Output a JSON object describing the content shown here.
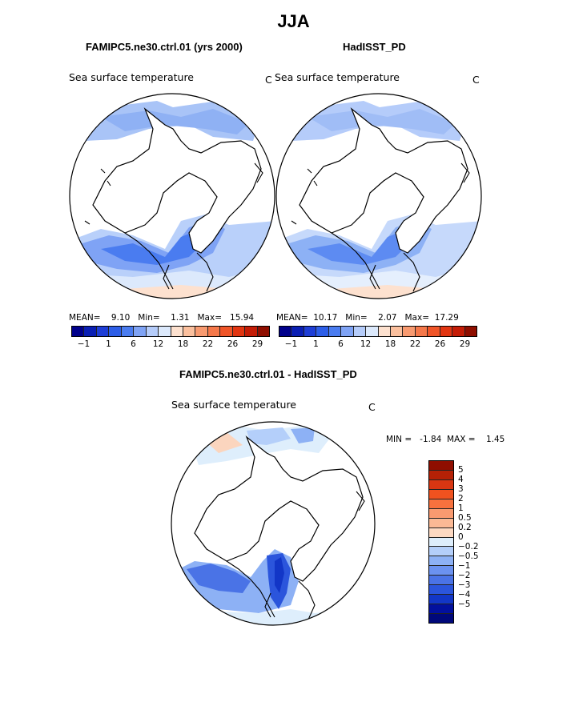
{
  "figure": {
    "title": "JJA",
    "panels": [
      {
        "case": "FAMIPC5.ne30.ctrl.01 (yrs 2000)",
        "variable": "Sea surface temperature",
        "unit": "C",
        "stats": {
          "mean_label": "MEAN=",
          "mean": "9.10",
          "min_label": "Min=",
          "min": "1.31",
          "max_label": "Max=",
          "max": "15.94"
        }
      },
      {
        "case": "HadISST_PD",
        "variable": "Sea surface temperature",
        "unit": "C",
        "stats": {
          "mean_label": "MEAN=",
          "mean": "10.17",
          "min_label": "Min=",
          "min": "2.07",
          "max_label": "Max=",
          "max": "17.29"
        }
      }
    ],
    "diff_panel": {
      "case": "FAMIPC5.ne30.ctrl.01 - HadISST_PD",
      "variable": "Sea surface temperature",
      "unit": "C",
      "stats": {
        "min_label": "MIN =",
        "min": "-1.84",
        "max_label": "MAX =",
        "max": "1.45"
      }
    }
  },
  "abs_colorbar": {
    "colors": [
      "#00008b",
      "#0a1fb4",
      "#1e3ed6",
      "#2d5ee8",
      "#4a7cf0",
      "#7fa3f5",
      "#b5ccfa",
      "#dce9fc",
      "#fde1cf",
      "#fbc09e",
      "#f89a70",
      "#f5784a",
      "#f05528",
      "#e23511",
      "#c41c06",
      "#8f0e00"
    ],
    "tick_labels": [
      "−1",
      "1",
      "6",
      "12",
      "18",
      "22",
      "26",
      "29"
    ]
  },
  "diff_colorbar": {
    "colors": [
      "#8f0e00",
      "#b52106",
      "#d93612",
      "#f0521f",
      "#f7713e",
      "#f99a70",
      "#fbb995",
      "#fdd9c2",
      "#deeefc",
      "#b4cffa",
      "#8db1f5",
      "#6b92f0",
      "#4a73e6",
      "#2b55dc",
      "#1236c7",
      "#02109e",
      "#00087a"
    ],
    "tick_labels": [
      "5",
      "4",
      "3",
      "2",
      "1",
      "0.5",
      "0.2",
      "0",
      "−0.2",
      "−0.5",
      "−1",
      "−2",
      "−3",
      "−4",
      "−5"
    ]
  }
}
